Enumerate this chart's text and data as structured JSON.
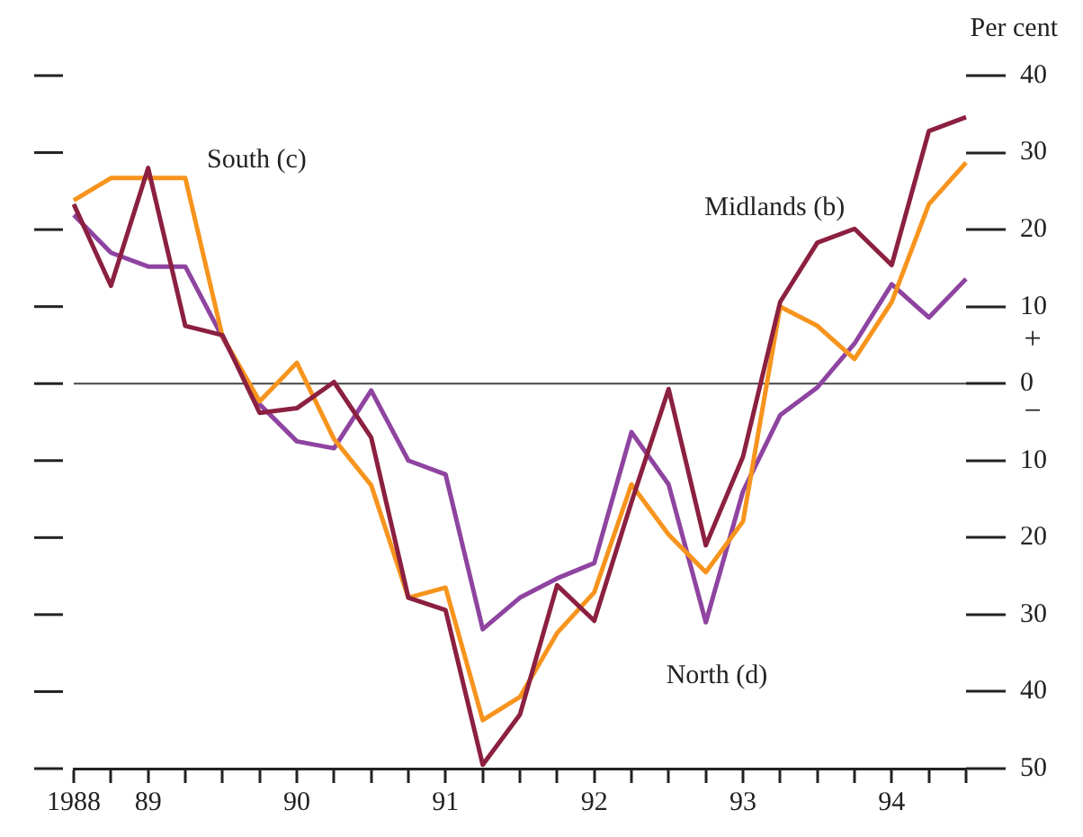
{
  "chart_data": {
    "type": "line",
    "ylabel": "Per cent",
    "categories": [
      "1988",
      null,
      "89",
      null,
      null,
      null,
      "90",
      null,
      null,
      null,
      "91",
      null,
      null,
      null,
      "92",
      null,
      null,
      null,
      "93",
      null,
      null,
      null,
      "94",
      null,
      null
    ],
    "series": [
      {
        "name": "Midlands (b)",
        "color": "#8b2040",
        "values": [
          23.3,
          12.7,
          28,
          7.5,
          6.3,
          -3.8,
          -3.2,
          0.2,
          -7,
          -27.8,
          -29.4,
          -49.5,
          -43,
          -26.2,
          -30.8,
          -15.4,
          -0.7,
          -21,
          -9.5,
          10.6,
          18.3,
          20.1,
          15.4,
          32.8,
          34.6
        ]
      },
      {
        "name": "South (c)",
        "color": "#f7941d",
        "values": [
          23.8,
          26.7,
          26.7,
          26.7,
          6.1,
          -2.3,
          2.7,
          -7.2,
          -13.2,
          -27.8,
          -26.5,
          -43.7,
          -40.7,
          -32.4,
          -27.1,
          -13.1,
          -19.6,
          -24.5,
          -17.9,
          10,
          7.5,
          3.2,
          10.6,
          23.3,
          28.7
        ]
      },
      {
        "name": "North (d)",
        "color": "#8e44a0",
        "values": [
          21.9,
          17,
          15.2,
          15.2,
          6,
          -2.7,
          -7.5,
          -8.4,
          -0.9,
          -10,
          -11.8,
          -31.9,
          -27.8,
          -25.3,
          -23.3,
          -6.3,
          -13.1,
          -31,
          -14,
          -4.1,
          -0.5,
          5.2,
          12.9,
          8.6,
          13.6
        ]
      }
    ],
    "ylim": [
      -50,
      40
    ],
    "yticks": [
      {
        "value": -50,
        "label": "50"
      },
      {
        "value": -40,
        "label": "40"
      },
      {
        "value": -30,
        "label": "30"
      },
      {
        "value": -20,
        "label": "20"
      },
      {
        "value": -10,
        "label": "10"
      },
      0,
      10,
      20,
      30,
      40
    ],
    "ref_lines": [
      {
        "axis": "y",
        "value": 0,
        "color": "#444444"
      }
    ],
    "annotations": [
      "+",
      "−"
    ],
    "grid": false,
    "legend": false,
    "marker": "none",
    "line_style": "solid"
  }
}
